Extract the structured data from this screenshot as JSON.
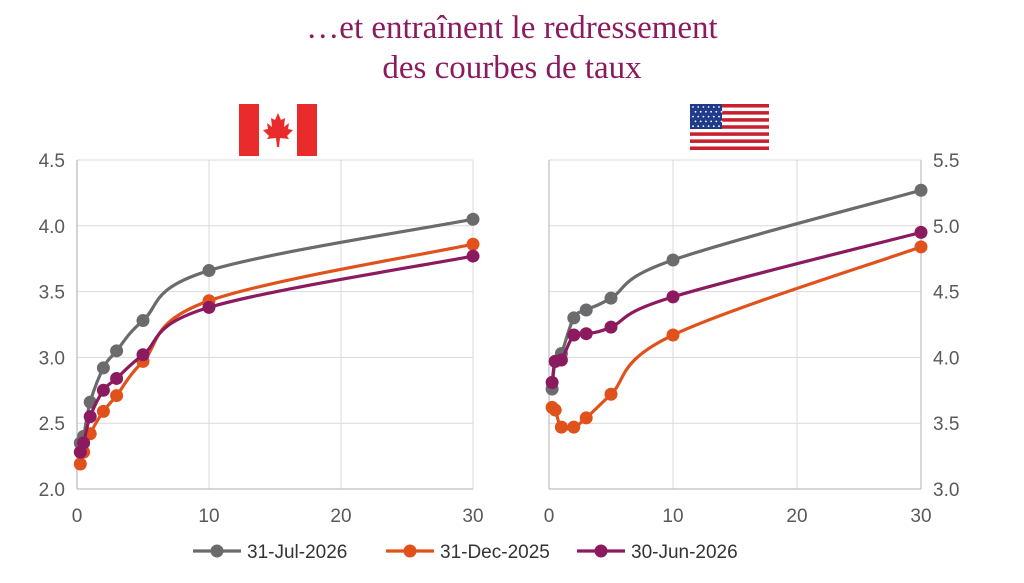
{
  "title": {
    "line1": "…et entraînent le redressement",
    "line2": "des courbes de taux"
  },
  "colors": {
    "title": "#8c1a5e",
    "series": [
      "#6b6b6e",
      "#e0511c",
      "#8c1a5e"
    ],
    "grid": "#d9d9d9",
    "axis": "#bfbfbf"
  },
  "flags": [
    "canada-flag-icon",
    "usa-flag-icon"
  ],
  "legend": {
    "placement": "bottom",
    "items": [
      "31-Jul-2026",
      "31-Dec-2025",
      "30-Jun-2026"
    ]
  },
  "chart_data": [
    {
      "type": "line",
      "xlim": [
        0,
        30
      ],
      "ylim": [
        2.0,
        4.5
      ],
      "xticks": [
        "0",
        "10",
        "20",
        "30"
      ],
      "yticks": [
        "2.0",
        "2.5",
        "3.0",
        "3.5",
        "4.0",
        "4.5"
      ],
      "yaxis_side": "left",
      "grid": true,
      "series": [
        {
          "name": "31-Jul-2026",
          "x": [
            0.25,
            0.5,
            1,
            2,
            3,
            5,
            10,
            30
          ],
          "y": [
            2.35,
            2.4,
            2.66,
            2.92,
            3.05,
            3.28,
            3.66,
            4.05
          ]
        },
        {
          "name": "31-Dec-2025",
          "x": [
            0.25,
            0.5,
            1,
            2,
            3,
            5,
            10,
            30
          ],
          "y": [
            2.19,
            2.28,
            2.42,
            2.59,
            2.71,
            2.97,
            3.43,
            3.86
          ]
        },
        {
          "name": "30-Jun-2026",
          "x": [
            0.25,
            0.5,
            1,
            2,
            3,
            5,
            10,
            30
          ],
          "y": [
            2.28,
            2.35,
            2.55,
            2.75,
            2.84,
            3.02,
            3.38,
            3.77
          ]
        }
      ]
    },
    {
      "type": "line",
      "xlim": [
        0,
        30
      ],
      "ylim": [
        3.0,
        5.5
      ],
      "xticks": [
        "0",
        "10",
        "20",
        "30"
      ],
      "yticks": [
        "3.0",
        "3.5",
        "4.0",
        "4.5",
        "5.0",
        "5.5"
      ],
      "yaxis_side": "right",
      "grid": true,
      "series": [
        {
          "name": "31-Jul-2026",
          "x": [
            0.25,
            0.5,
            1,
            2,
            3,
            5,
            10,
            30
          ],
          "y": [
            3.76,
            3.97,
            4.03,
            4.3,
            4.36,
            4.45,
            4.74,
            5.27
          ]
        },
        {
          "name": "31-Dec-2025",
          "x": [
            0.25,
            0.5,
            1,
            2,
            3,
            5,
            10,
            30
          ],
          "y": [
            3.62,
            3.6,
            3.47,
            3.47,
            3.54,
            3.72,
            4.17,
            4.84
          ]
        },
        {
          "name": "30-Jun-2026",
          "x": [
            0.25,
            0.5,
            1,
            2,
            3,
            5,
            10,
            30
          ],
          "y": [
            3.81,
            3.97,
            3.98,
            4.17,
            4.18,
            4.23,
            4.46,
            4.95
          ]
        }
      ]
    }
  ]
}
